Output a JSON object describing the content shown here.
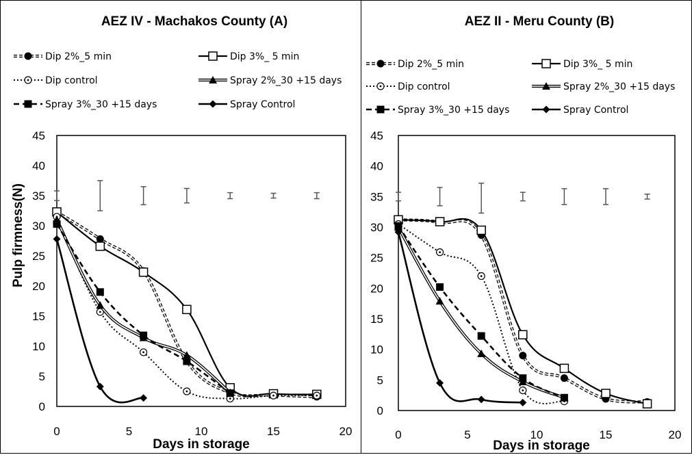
{
  "chart_data": [
    {
      "type": "line",
      "title": "AEZ IV - Machakos County (A)",
      "xlabel": "Days in storage",
      "ylabel": "Pulp firmness(N)",
      "xlim": [
        0,
        20
      ],
      "ylim": [
        0,
        45
      ],
      "xticks": [
        "0",
        "5",
        "10",
        "15",
        "20"
      ],
      "yticks": [
        "0",
        "5",
        "10",
        "15",
        "20",
        "25",
        "30",
        "35",
        "40",
        "45"
      ],
      "grid": false,
      "legend_position": "top",
      "series": [
        {
          "name": "Dip 2%_5 min",
          "style": "dip2",
          "points": [
            [
              0,
              32.3
            ],
            [
              3,
              27.8
            ],
            [
              6,
              22.5
            ],
            [
              9,
              7.5
            ],
            [
              12,
              2.3
            ],
            [
              15,
              1.9
            ],
            [
              18,
              1.6
            ]
          ]
        },
        {
          "name": "Dip 3%_ 5 min",
          "style": "dip3",
          "points": [
            [
              0,
              32.3
            ],
            [
              3,
              26.6
            ],
            [
              6,
              22.3
            ],
            [
              9,
              16.1
            ],
            [
              12,
              3.1
            ],
            [
              15,
              2.1
            ],
            [
              18,
              2.0
            ]
          ]
        },
        {
          "name": "Dip control",
          "style": "dipctl",
          "points": [
            [
              0,
              31.5
            ],
            [
              3,
              15.7
            ],
            [
              6,
              9.0
            ],
            [
              9,
              2.5
            ],
            [
              12,
              1.3
            ],
            [
              15,
              1.8
            ],
            [
              18,
              1.8
            ]
          ]
        },
        {
          "name": "Spray 2%_30 +15 days",
          "style": "spray2",
          "points": [
            [
              0,
              31.0
            ],
            [
              3,
              16.8
            ],
            [
              6,
              11.4
            ],
            [
              9,
              8.5
            ],
            [
              12,
              2.3
            ]
          ]
        },
        {
          "name": "Spray 3%_30 +15 days",
          "style": "spray3",
          "points": [
            [
              0,
              30.3
            ],
            [
              3,
              19.0
            ],
            [
              6,
              11.8
            ],
            [
              9,
              7.5
            ],
            [
              12,
              2.2
            ]
          ]
        },
        {
          "name": "Spray Control",
          "style": "sprayctl",
          "points": [
            [
              0,
              27.8
            ],
            [
              3,
              3.3
            ],
            [
              6,
              1.4
            ]
          ]
        }
      ],
      "error_bars": [
        [
          0,
          34.2,
          35.8
        ],
        [
          3,
          32.5,
          37.5
        ],
        [
          6,
          33.5,
          36.5
        ],
        [
          9,
          33.8,
          36.2
        ],
        [
          12,
          34.5,
          35.5
        ],
        [
          15,
          34.6,
          35.4
        ],
        [
          18,
          34.5,
          35.5
        ]
      ]
    },
    {
      "type": "line",
      "title": "AEZ II - Meru County  (B)",
      "xlabel": "Days in storage",
      "ylabel": "",
      "xlim": [
        0,
        20
      ],
      "ylim": [
        0,
        45
      ],
      "xticks": [
        "0",
        "5",
        "10",
        "15",
        "20"
      ],
      "yticks": [
        "0",
        "5",
        "10",
        "15",
        "20",
        "25",
        "30",
        "35",
        "40",
        "45"
      ],
      "grid": false,
      "legend_position": "top",
      "series": [
        {
          "name": "Dip 2%_5 min",
          "style": "dip2",
          "points": [
            [
              0,
              31.2
            ],
            [
              3,
              30.8
            ],
            [
              6,
              28.7
            ],
            [
              9,
              9.0
            ],
            [
              12,
              5.3
            ],
            [
              15,
              1.9
            ],
            [
              18,
              1.4
            ]
          ]
        },
        {
          "name": "Dip 3%_ 5 min",
          "style": "dip3",
          "points": [
            [
              0,
              31.2
            ],
            [
              3,
              30.9
            ],
            [
              6,
              29.5
            ],
            [
              9,
              12.4
            ],
            [
              12,
              6.9
            ],
            [
              15,
              2.8
            ],
            [
              18,
              1.1
            ]
          ]
        },
        {
          "name": "Dip control",
          "style": "dipctl",
          "points": [
            [
              0,
              30.5
            ],
            [
              3,
              25.9
            ],
            [
              6,
              22.0
            ],
            [
              9,
              3.3
            ],
            [
              12,
              1.5
            ]
          ]
        },
        {
          "name": "Spray 2%_30 +15 days",
          "style": "spray2",
          "points": [
            [
              0,
              30.0
            ],
            [
              3,
              17.9
            ],
            [
              6,
              9.3
            ],
            [
              9,
              4.7
            ],
            [
              12,
              2.1
            ]
          ]
        },
        {
          "name": "Spray 3%_30 +15 days",
          "style": "spray3",
          "points": [
            [
              0,
              30.2
            ],
            [
              3,
              20.2
            ],
            [
              6,
              12.2
            ],
            [
              9,
              5.3
            ],
            [
              12,
              2.1
            ]
          ]
        },
        {
          "name": "Spray Control",
          "style": "sprayctl",
          "points": [
            [
              0,
              29.2
            ],
            [
              3,
              4.5
            ],
            [
              6,
              1.8
            ],
            [
              9,
              1.3
            ]
          ]
        }
      ],
      "error_bars": [
        [
          0,
          34.3,
          35.7
        ],
        [
          3,
          33.5,
          36.5
        ],
        [
          6,
          32.3,
          37.2
        ],
        [
          9,
          34.3,
          35.7
        ],
        [
          12,
          33.7,
          36.3
        ],
        [
          15,
          33.7,
          36.3
        ],
        [
          18,
          34.6,
          35.4
        ]
      ]
    }
  ]
}
